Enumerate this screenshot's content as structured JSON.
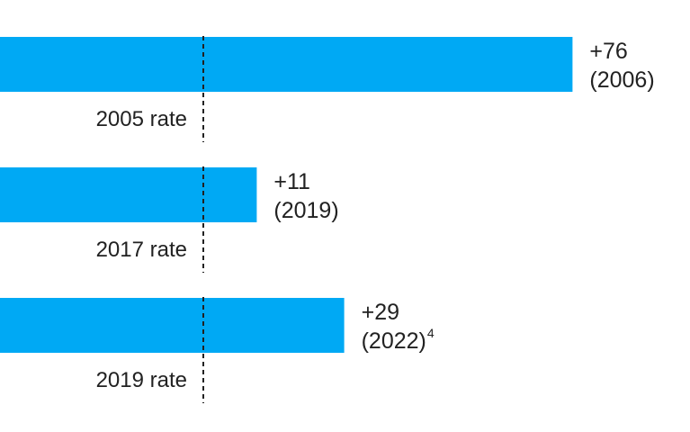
{
  "chart_data": {
    "type": "bar",
    "orientation": "horizontal",
    "bar_color": "#00A9F4",
    "reference_line_color": "#222222",
    "rows": [
      {
        "reference_label": "2005 rate",
        "value": 76,
        "value_label": "+76",
        "year_label": "(2006)",
        "footnote": ""
      },
      {
        "reference_label": "2017 rate",
        "value": 11,
        "value_label": "+11",
        "year_label": "(2019)",
        "footnote": ""
      },
      {
        "reference_label": "2019 rate",
        "value": 29,
        "value_label": "+29",
        "year_label": "(2022)",
        "footnote": "4"
      }
    ]
  }
}
